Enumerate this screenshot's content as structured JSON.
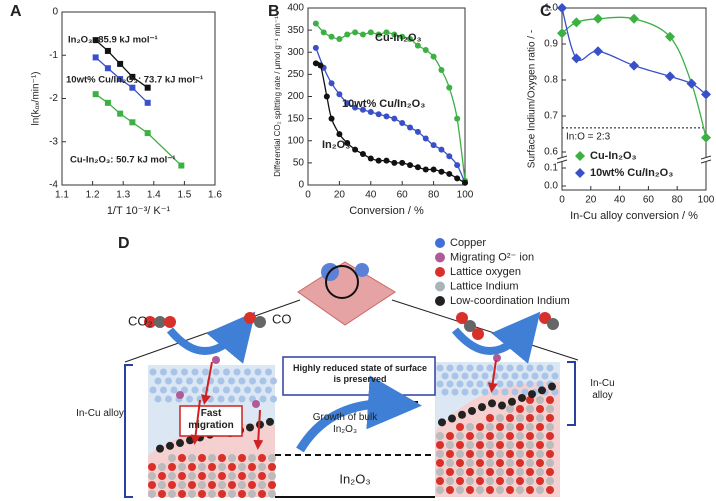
{
  "chart_data": [
    {
      "type": "scatter",
      "panel": "A",
      "marker": "square",
      "line": "straight",
      "xlabel": "1/T 10⁻³/ K⁻¹",
      "ylabel": "ln(kₒₓ/min⁻¹)",
      "xlim": [
        1.1,
        1.6
      ],
      "xticks": [
        1.1,
        1.2,
        1.3,
        1.4,
        1.5,
        1.6
      ],
      "ylim": [
        -4,
        0
      ],
      "yticks": [
        0,
        -1,
        -2,
        -3,
        -4
      ],
      "series": [
        {
          "name": "In₂O₃: 85.9 kJ mol⁻¹",
          "color": "#111111",
          "x": [
            1.21,
            1.25,
            1.29,
            1.33,
            1.38
          ],
          "values": [
            -0.65,
            -0.9,
            -1.2,
            -1.5,
            -1.75
          ]
        },
        {
          "name": "10wt% Cu/In₂O₃: 73.7 kJ mol⁻¹",
          "color": "#3a50c8",
          "x": [
            1.21,
            1.25,
            1.29,
            1.33,
            1.38
          ],
          "values": [
            -1.05,
            -1.3,
            -1.55,
            -1.75,
            -2.1
          ]
        },
        {
          "name": "Cu-In₂O₃: 50.7 kJ mol⁻¹",
          "color": "#3cb043",
          "x": [
            1.21,
            1.25,
            1.29,
            1.33,
            1.38,
            1.49
          ],
          "values": [
            -1.9,
            -2.1,
            -2.35,
            -2.55,
            -2.8,
            -3.55
          ]
        }
      ]
    },
    {
      "type": "scatter",
      "panel": "B",
      "marker": "circle",
      "line": "smooth",
      "xlabel": "Conversion / %",
      "ylabel": "Differential CO₂ splitting rate / μmol g⁻¹ min⁻¹",
      "xlim": [
        0,
        100
      ],
      "xticks": [
        0,
        20,
        40,
        60,
        80,
        100
      ],
      "ylim": [
        0,
        400
      ],
      "yticks": [
        0,
        50,
        100,
        150,
        200,
        250,
        300,
        350,
        400
      ],
      "series": [
        {
          "name": "Cu-In₂O₃",
          "color": "#3cb043",
          "x": [
            5,
            10,
            15,
            20,
            25,
            30,
            35,
            40,
            45,
            50,
            55,
            60,
            65,
            70,
            75,
            80,
            85,
            90,
            95,
            100
          ],
          "values": [
            365,
            345,
            335,
            330,
            340,
            345,
            340,
            345,
            340,
            345,
            340,
            335,
            330,
            315,
            305,
            290,
            260,
            220,
            150,
            10
          ]
        },
        {
          "name": "10wt% Cu/In₂O₃",
          "color": "#3a50c8",
          "x": [
            5,
            10,
            15,
            20,
            25,
            30,
            35,
            40,
            45,
            50,
            55,
            60,
            65,
            70,
            75,
            80,
            85,
            90,
            95,
            100
          ],
          "values": [
            310,
            265,
            230,
            205,
            185,
            175,
            170,
            165,
            160,
            155,
            150,
            140,
            130,
            120,
            105,
            90,
            80,
            65,
            45,
            5
          ]
        },
        {
          "name": "In₂O₃",
          "color": "#111111",
          "x": [
            5,
            8,
            12,
            15,
            20,
            25,
            30,
            35,
            40,
            45,
            50,
            55,
            60,
            65,
            70,
            75,
            80,
            85,
            90,
            95,
            100
          ],
          "values": [
            275,
            270,
            200,
            150,
            115,
            95,
            80,
            70,
            60,
            55,
            55,
            50,
            50,
            45,
            40,
            35,
            35,
            30,
            25,
            15,
            5
          ]
        }
      ]
    },
    {
      "type": "scatter",
      "panel": "C",
      "marker": "diamond",
      "line": "smooth",
      "legend": "lower left",
      "xlabel": "In-Cu alloy conversion / %",
      "ylabel": "Surface Indium/Oxygen ratio / -",
      "xlim": [
        0,
        100
      ],
      "xticks": [
        0,
        20,
        40,
        60,
        80,
        100
      ],
      "ylim": [
        0.6,
        1
      ],
      "yticks": [
        0.6,
        0.7,
        0.8,
        0.9,
        {
          "value": 1,
          "label": "1.0"
        }
      ],
      "lower_ylim": [
        0,
        0.1
      ],
      "lower_yticks": [
        {
          "value": 0,
          "label": "0.0"
        },
        0.1
      ],
      "hline": {
        "value": 0.667,
        "label": "In:O = 2:3"
      },
      "series": [
        {
          "name": "Cu-In₂O₃",
          "color": "#3cb043",
          "x": [
            0,
            10,
            25,
            50,
            75,
            90,
            100
          ],
          "values": [
            0.93,
            0.96,
            0.97,
            0.97,
            0.92,
            0.79,
            0.64
          ]
        },
        {
          "name": "10wt% Cu/In₂O₃",
          "color": "#3a50c8",
          "x": [
            0,
            10,
            25,
            50,
            75,
            90,
            100
          ],
          "values": [
            1,
            0.86,
            0.88,
            0.84,
            0.81,
            0.79,
            0.76
          ]
        }
      ]
    }
  ],
  "diagram": {
    "label": "D",
    "legend": [
      "Copper",
      "Migrating O²⁻ ion",
      "Lattice oxygen",
      "Lattice Indium",
      "Low-coordination Indium"
    ],
    "reactant": "CO₂",
    "product": "CO",
    "alloy_left": "In-Cu alloy",
    "alloy_right": "In-Cu alloy",
    "fast_migration": "Fast migration",
    "preserved": "Highly reduced state of surface is preserved",
    "growth": "Growth of bulk In₂O₃",
    "bulk": "In₂O₃"
  }
}
